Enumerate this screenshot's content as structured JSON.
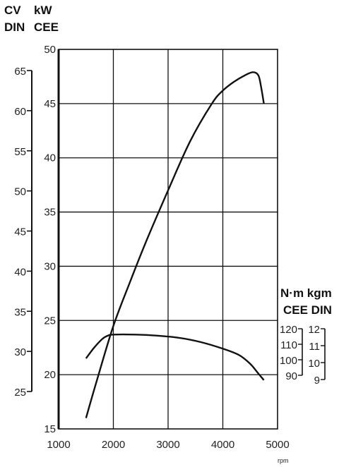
{
  "chart_data": {
    "type": "line",
    "title": "",
    "header_left": {
      "line1": "CV",
      "line2": "DIN"
    },
    "header_kw": {
      "line1": "kW",
      "line2": "CEE"
    },
    "header_torque": {
      "line1": "N·m kgm",
      "line2": "CEE DIN"
    },
    "xlabel": "rpm",
    "xlim": [
      1000,
      5000
    ],
    "x_ticks": [
      "1000",
      "2000",
      "3000",
      "4000",
      "5000"
    ],
    "kw_axis": {
      "label": "kW",
      "range": [
        15,
        50
      ],
      "ticks": [
        "15",
        "20",
        "25",
        "30",
        "35",
        "40",
        "45",
        "50"
      ]
    },
    "cv_axis": {
      "label": "CV DIN",
      "range": [
        25,
        65
      ],
      "ticks": [
        "25",
        "30",
        "35",
        "40",
        "45",
        "50",
        "55",
        "60",
        "65"
      ]
    },
    "nm_axis": {
      "label": "N·m CEE",
      "ticks": [
        "120",
        "110",
        "100",
        "90"
      ]
    },
    "kgm_axis": {
      "label": "kgm DIN",
      "ticks": [
        "12",
        "11",
        "10",
        "9"
      ]
    },
    "grid": true,
    "series": [
      {
        "x": [
          1500,
          1700,
          2000,
          2300,
          2600,
          3000,
          3400,
          3800,
          4000,
          4200,
          4400,
          4550,
          4650,
          4700,
          4750
        ],
        "values": [
          16,
          19.5,
          24.5,
          28.5,
          32.3,
          37,
          41.5,
          45,
          46.2,
          47,
          47.6,
          47.9,
          47.6,
          46.5,
          45
        ]
      },
      {
        "x": [
          1500,
          1650,
          1800,
          1900,
          2000,
          2400,
          2800,
          3200,
          3600,
          4000,
          4300,
          4500,
          4650,
          4750
        ],
        "values": [
          21.5,
          22.5,
          23.3,
          23.6,
          23.7,
          23.7,
          23.6,
          23.4,
          23.0,
          22.4,
          21.8,
          21.0,
          20.1,
          19.5
        ]
      }
    ],
    "colors": {
      "curve": "#111111",
      "grid": "#111111"
    }
  }
}
